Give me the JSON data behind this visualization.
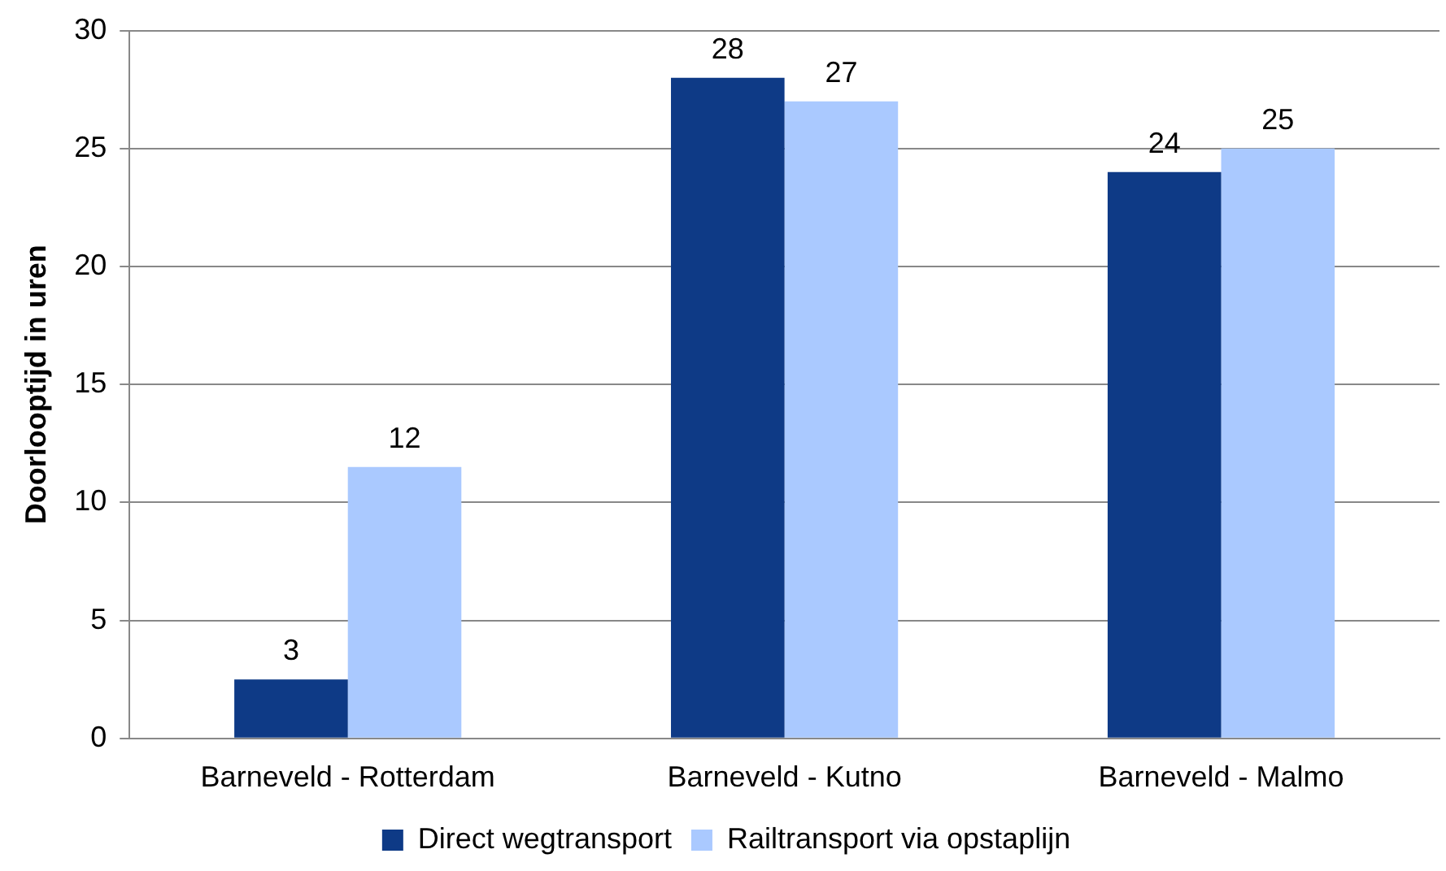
{
  "chart_data": {
    "type": "bar",
    "ylabel": "Doorlooptijd in uren",
    "categories": [
      "Barneveld - Rotterdam",
      "Barneveld - Kutno",
      "Barneveld - Malmo"
    ],
    "series": [
      {
        "name": "Direct wegtransport",
        "color": "#0e3a86",
        "values": [
          2.5,
          28,
          24
        ],
        "value_labels": [
          "3",
          "28",
          "24"
        ]
      },
      {
        "name": "Railtransport via opstaplijn",
        "color": "#aac9ff",
        "values": [
          11.5,
          27,
          25
        ],
        "value_labels": [
          "12",
          "27",
          "25"
        ]
      }
    ],
    "ylim": [
      0,
      30
    ],
    "yticks": [
      0,
      5,
      10,
      15,
      20,
      25,
      30
    ],
    "grid": "y",
    "legend": "bottom"
  }
}
